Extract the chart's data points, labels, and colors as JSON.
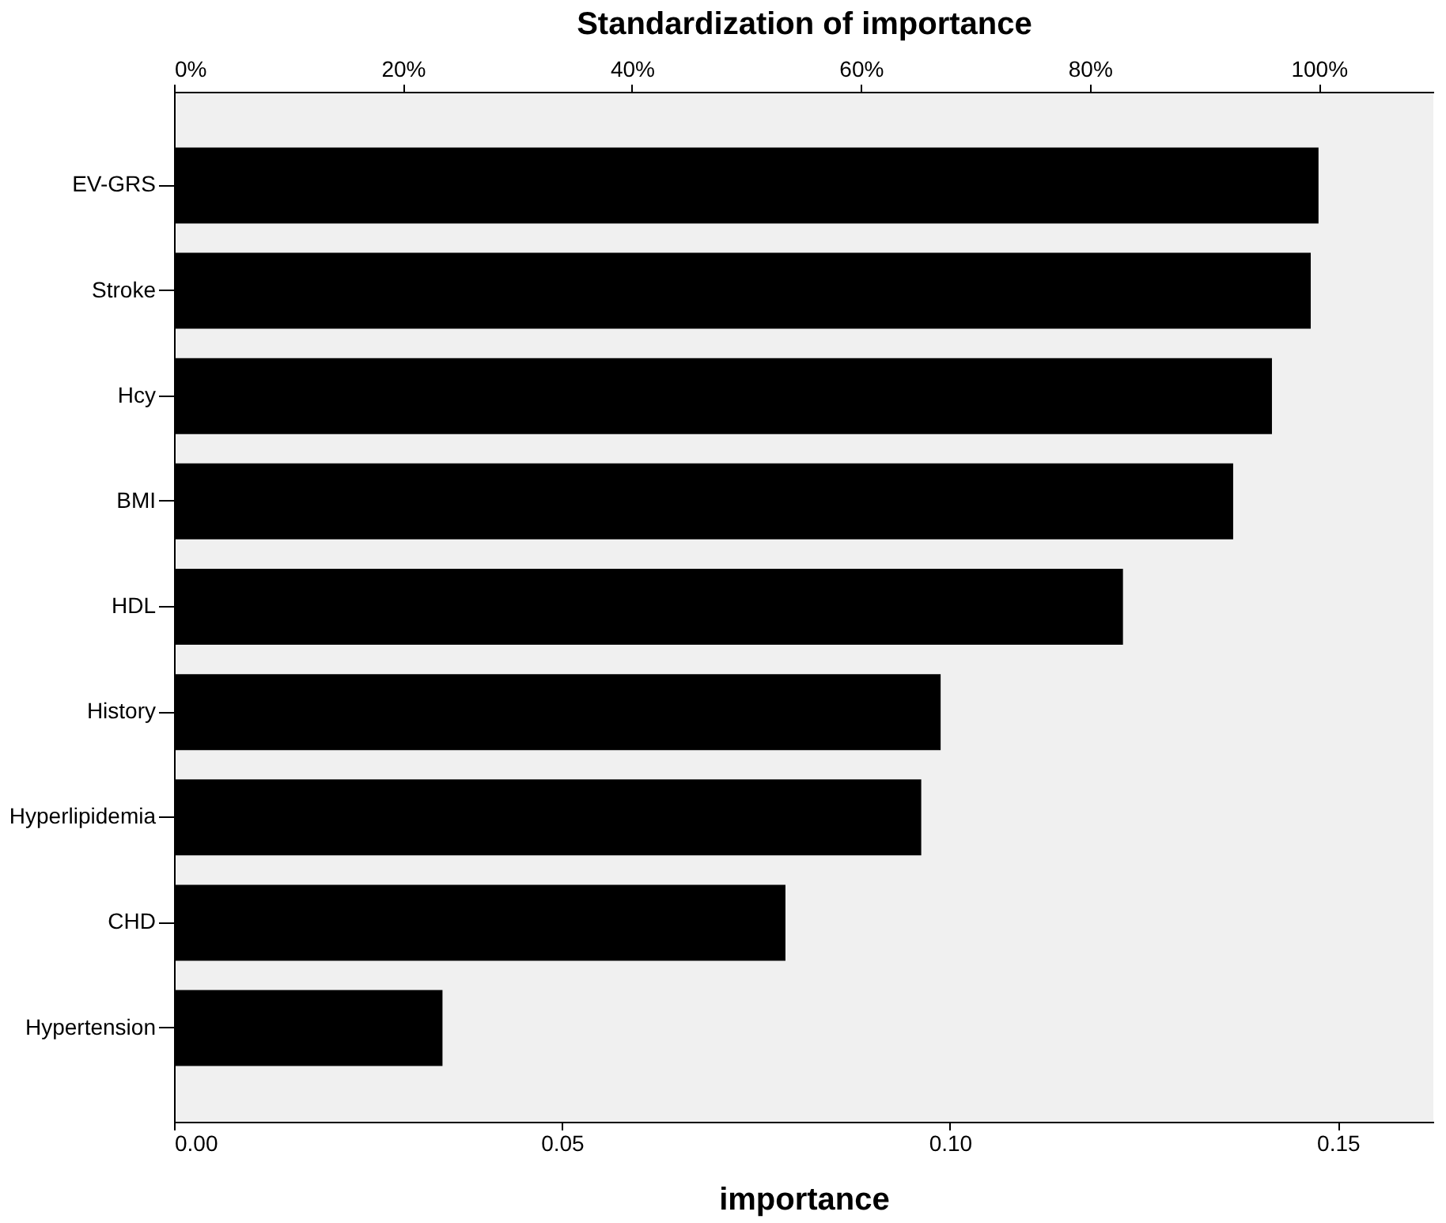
{
  "chart_data": {
    "type": "bar",
    "orientation": "horizontal",
    "categories": [
      "EV-GRS",
      "Stroke",
      "Hcy",
      "BMI",
      "HDL",
      "History",
      "Hyperlipidemia",
      "CHD",
      "Hypertension"
    ],
    "values": [
      0.1475,
      0.1465,
      0.1415,
      0.1365,
      0.1223,
      0.0988,
      0.0963,
      0.0788,
      0.0346
    ],
    "color": "#000000",
    "xlabel": "importance",
    "x2label": "Standardization of importance",
    "xlim": [
      0,
      0.1623
    ],
    "xticks": [
      {
        "value": 0,
        "label": "0.00"
      },
      {
        "value": 0.05,
        "label": "0.05"
      },
      {
        "value": 0.1,
        "label": "0.10"
      },
      {
        "value": 0.15,
        "label": "0.15"
      }
    ],
    "x2lim": [
      0,
      110
    ],
    "x2ticks": [
      {
        "value": 0,
        "label": "0%"
      },
      {
        "value": 20,
        "label": "20%"
      },
      {
        "value": 40,
        "label": "40%"
      },
      {
        "value": 60,
        "label": "60%"
      },
      {
        "value": 80,
        "label": "80%"
      },
      {
        "value": 100,
        "label": "100%"
      }
    ],
    "grid": false
  }
}
